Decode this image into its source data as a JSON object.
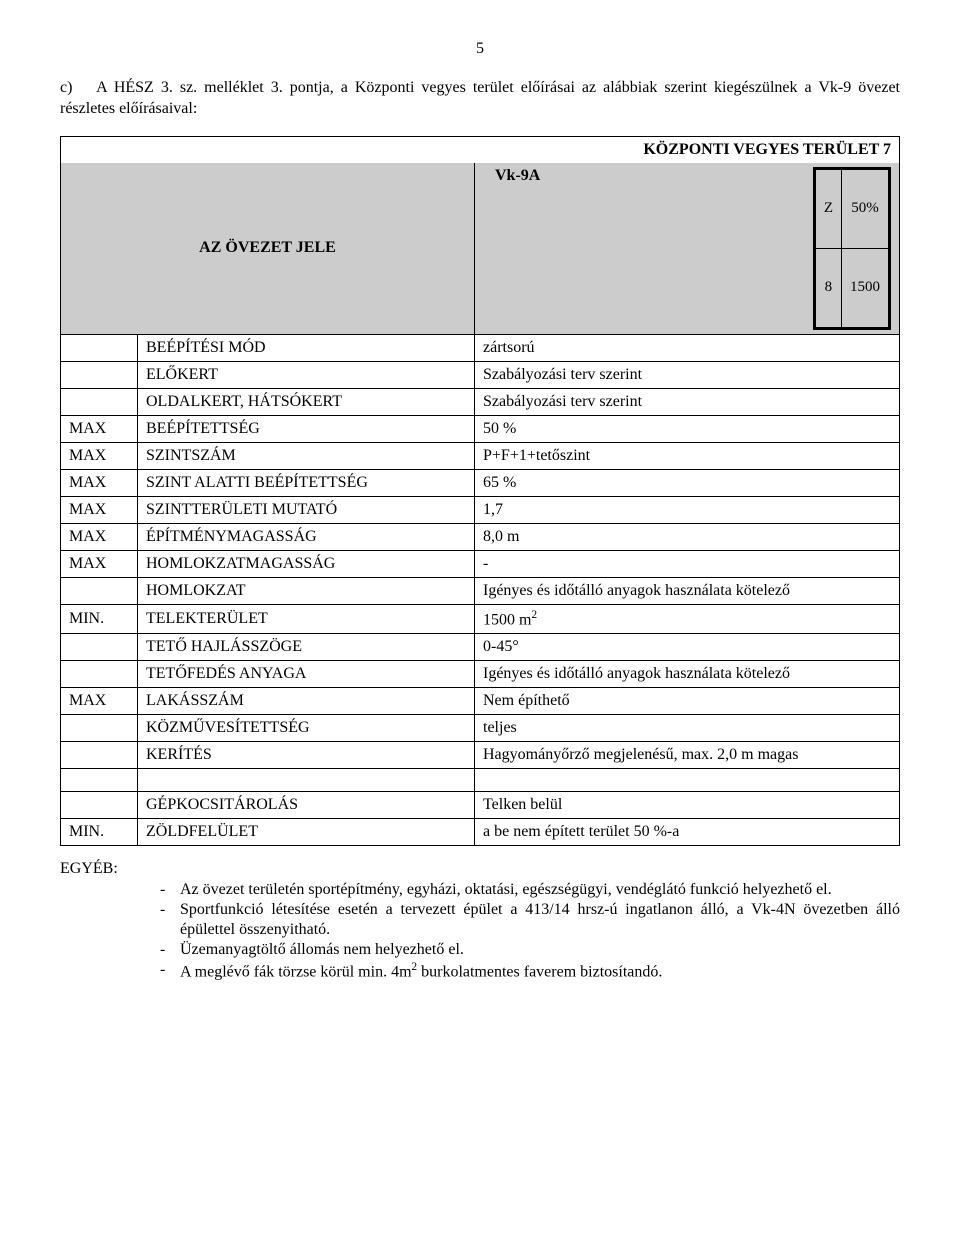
{
  "page_number": "5",
  "intro": {
    "marker": "c)",
    "text": "A HÉSZ 3. sz. melléklet 3. pontja, a Központi vegyes terület előírásai az alábbiak szerint kiegészülnek a Vk-9 övezet részletes előírásaival:"
  },
  "header": {
    "title": "KÖZPONTI VEGYES TERÜLET 7",
    "label": "AZ ÖVEZET JELE",
    "code": "Vk-9A",
    "mini": {
      "r1c1": "Z",
      "r1c2": "50%",
      "r2c1": "8",
      "r2c2": "1500"
    }
  },
  "rows": [
    {
      "prefix": "",
      "label": "BEÉPÍTÉSI MÓD",
      "value": "zártsorú"
    },
    {
      "prefix": "",
      "label": "ELŐKERT",
      "value": "Szabályozási terv szerint"
    },
    {
      "prefix": "",
      "label": "OLDALKERT, HÁTSÓKERT",
      "value": "Szabályozási terv szerint"
    },
    {
      "prefix": "MAX",
      "label": "BEÉPÍTETTSÉG",
      "value": "50 %"
    },
    {
      "prefix": "MAX",
      "label": "SZINTSZÁM",
      "value": "P+F+1+tetőszint"
    },
    {
      "prefix": "MAX",
      "label": "SZINT ALATTI BEÉPÍTETTSÉG",
      "value": "65 %"
    },
    {
      "prefix": "MAX",
      "label": "SZINTTERÜLETI MUTATÓ",
      "value": "1,7"
    },
    {
      "prefix": "MAX",
      "label": "ÉPÍTMÉNYMAGASSÁG",
      "value": "8,0 m"
    },
    {
      "prefix": "MAX",
      "label": "HOMLOKZATMAGASSÁG",
      "value": "-"
    },
    {
      "prefix": "",
      "label": "HOMLOKZAT",
      "value": "Igényes és időtálló anyagok használata kötelező"
    },
    {
      "prefix": "MIN.",
      "label": "TELEKTERÜLET",
      "value_html": "1500 m<sup>2</sup>"
    },
    {
      "prefix": "",
      "label": "TETŐ  HAJLÁSSZÖGE",
      "value": "0-45°"
    },
    {
      "prefix": "",
      "label": "TETŐFEDÉS ANYAGA",
      "value": "Igényes és időtálló anyagok használata kötelező"
    },
    {
      "prefix": "MAX",
      "label": "LAKÁSSZÁM",
      "value": "Nem építhető"
    },
    {
      "prefix": "",
      "label": "KÖZMŰVESÍTETTSÉG",
      "value": "teljes"
    },
    {
      "prefix": "",
      "label": "KERÍTÉS",
      "value": "Hagyományőrző megjelenésű, max. 2,0 m magas"
    }
  ],
  "rows2": [
    {
      "prefix": "",
      "label": "GÉPKOCSITÁROLÁS",
      "value": "Telken belül"
    },
    {
      "prefix": "MIN.",
      "label": "ZÖLDFELÜLET",
      "value": "a be nem épített terület 50 %-a"
    }
  ],
  "egyeb": {
    "label": "EGYÉB:",
    "items": [
      "Az övezet területén sportépítmény, egyházi, oktatási, egészségügyi, vendéglátó funkció helyezhető el.",
      "Sportfunkció létesítése esetén a tervezett épület a 413/14 hrsz-ú ingatlanon álló, a Vk-4N övezetben álló épülettel összenyitható.",
      "Üzemanyagtöltő állomás nem helyezhető el.",
      {
        "html": "A meglévő fák törzse körül min. 4m<sup>2</sup> burkolatmentes faverem biztosítandó."
      }
    ]
  }
}
